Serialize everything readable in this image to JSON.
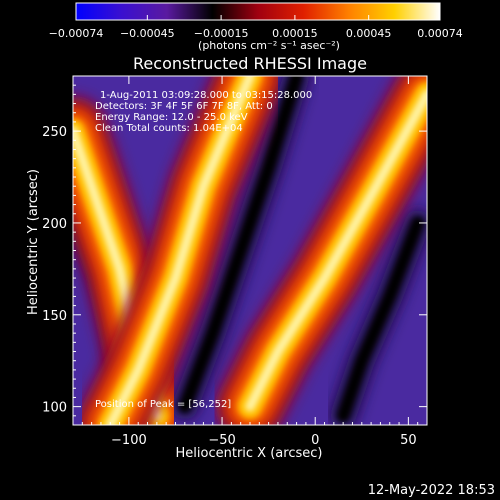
{
  "chart_data": {
    "type": "heatmap",
    "title": "Reconstructed RHESSI Image",
    "xlabel": "Heliocentric X (arcsec)",
    "ylabel": "Heliocentric Y (arcsec)",
    "xlim": [
      -130,
      60
    ],
    "ylim": [
      90,
      280
    ],
    "xticks": [
      -100,
      -50,
      0,
      50
    ],
    "yticks": [
      100,
      150,
      200,
      250
    ],
    "xtick_labels": [
      "−100",
      "−50",
      "0",
      "50"
    ],
    "ytick_labels": [
      "100",
      "150",
      "200",
      "250"
    ],
    "colorbar": {
      "range": [
        -0.00074,
        0.00074
      ],
      "ticks": [
        -0.00074,
        -0.00045,
        -0.00015,
        0.00015,
        0.00045,
        0.00074
      ],
      "tick_labels": [
        "−0.00074",
        "−0.00045",
        "−0.00015",
        "0.00015",
        "0.00045",
        "0.00074"
      ],
      "unit_label": "(photons cm⁻² s⁻¹ asec⁻²)",
      "colors": [
        "#0000ff",
        "#3a10d0",
        "#5a1aa0",
        "#000000",
        "#a00010",
        "#e02000",
        "#ff8000",
        "#ffd000",
        "#ffffff"
      ]
    },
    "annotations": {
      "time": "1-Aug-2011 03:09:28.000 to 03:15:28.000",
      "detectors": "Detectors: 3F 4F 5F 6F 7F 8F, Att: 0",
      "energy": "Energy Range: 12.0 - 25.0 keV",
      "clean": "Clean     Total counts: 1.04E+04",
      "peak": "Position of Peak = [56,252]"
    },
    "bands": [
      {
        "kind": "bright",
        "peak_value": 0.00074,
        "path": [
          [
            -130,
            250
          ],
          [
            -115,
            205
          ],
          [
            -105,
            175
          ],
          [
            -95,
            130
          ],
          [
            -85,
            95
          ]
        ]
      },
      {
        "kind": "bright",
        "peak_value": 0.00074,
        "path": [
          [
            -35,
            280
          ],
          [
            -60,
            220
          ],
          [
            -75,
            170
          ],
          [
            -95,
            120
          ],
          [
            -110,
            90
          ]
        ]
      },
      {
        "kind": "bright",
        "peak_value": 0.00074,
        "path": [
          [
            60,
            270
          ],
          [
            30,
            215
          ],
          [
            5,
            170
          ],
          [
            -20,
            130
          ],
          [
            -35,
            100
          ]
        ]
      },
      {
        "kind": "dark",
        "path": [
          [
            -125,
            200
          ],
          [
            -110,
            160
          ],
          [
            -100,
            110
          ],
          [
            -95,
            90
          ]
        ]
      },
      {
        "kind": "dark",
        "path": [
          [
            -10,
            280
          ],
          [
            -25,
            230
          ],
          [
            -40,
            185
          ],
          [
            -55,
            140
          ],
          [
            -70,
            100
          ]
        ]
      },
      {
        "kind": "dark",
        "path": [
          [
            55,
            200
          ],
          [
            40,
            160
          ],
          [
            25,
            125
          ],
          [
            15,
            95
          ]
        ]
      }
    ]
  },
  "footer": {
    "timestamp": "12-May-2022 18:53"
  }
}
